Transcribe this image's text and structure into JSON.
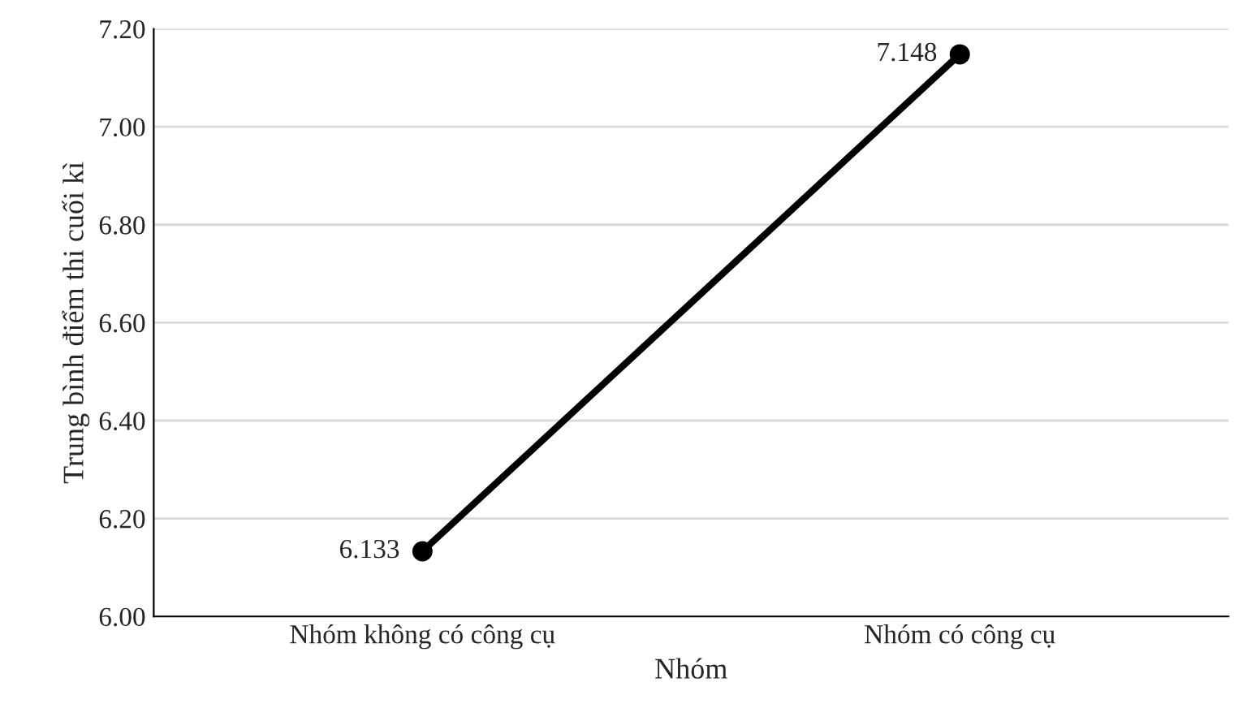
{
  "chart_data": {
    "type": "line",
    "xlabel": "Nhóm",
    "ylabel": "Trung bình điểm thi cuối kì",
    "categories": [
      "Nhóm không có công cụ",
      "Nhóm có công cụ"
    ],
    "series": [
      {
        "color": "#000000",
        "values": [
          6.133,
          7.148
        ]
      }
    ],
    "ylim": [
      6.0,
      7.2
    ],
    "yticks": [
      {
        "value": 6.0,
        "label": "6.00"
      },
      {
        "value": 6.2,
        "label": "6.20"
      },
      {
        "value": 6.4,
        "label": "6.40"
      },
      {
        "value": 6.6,
        "label": "6.60"
      },
      {
        "value": 6.8,
        "label": "6.80"
      },
      {
        "value": 7.0,
        "label": "7.00"
      },
      {
        "value": 7.2,
        "label": "7.20"
      }
    ],
    "grid": "y",
    "marker": "circle",
    "line_style": "solid",
    "data_labels": true,
    "legend": false
  }
}
